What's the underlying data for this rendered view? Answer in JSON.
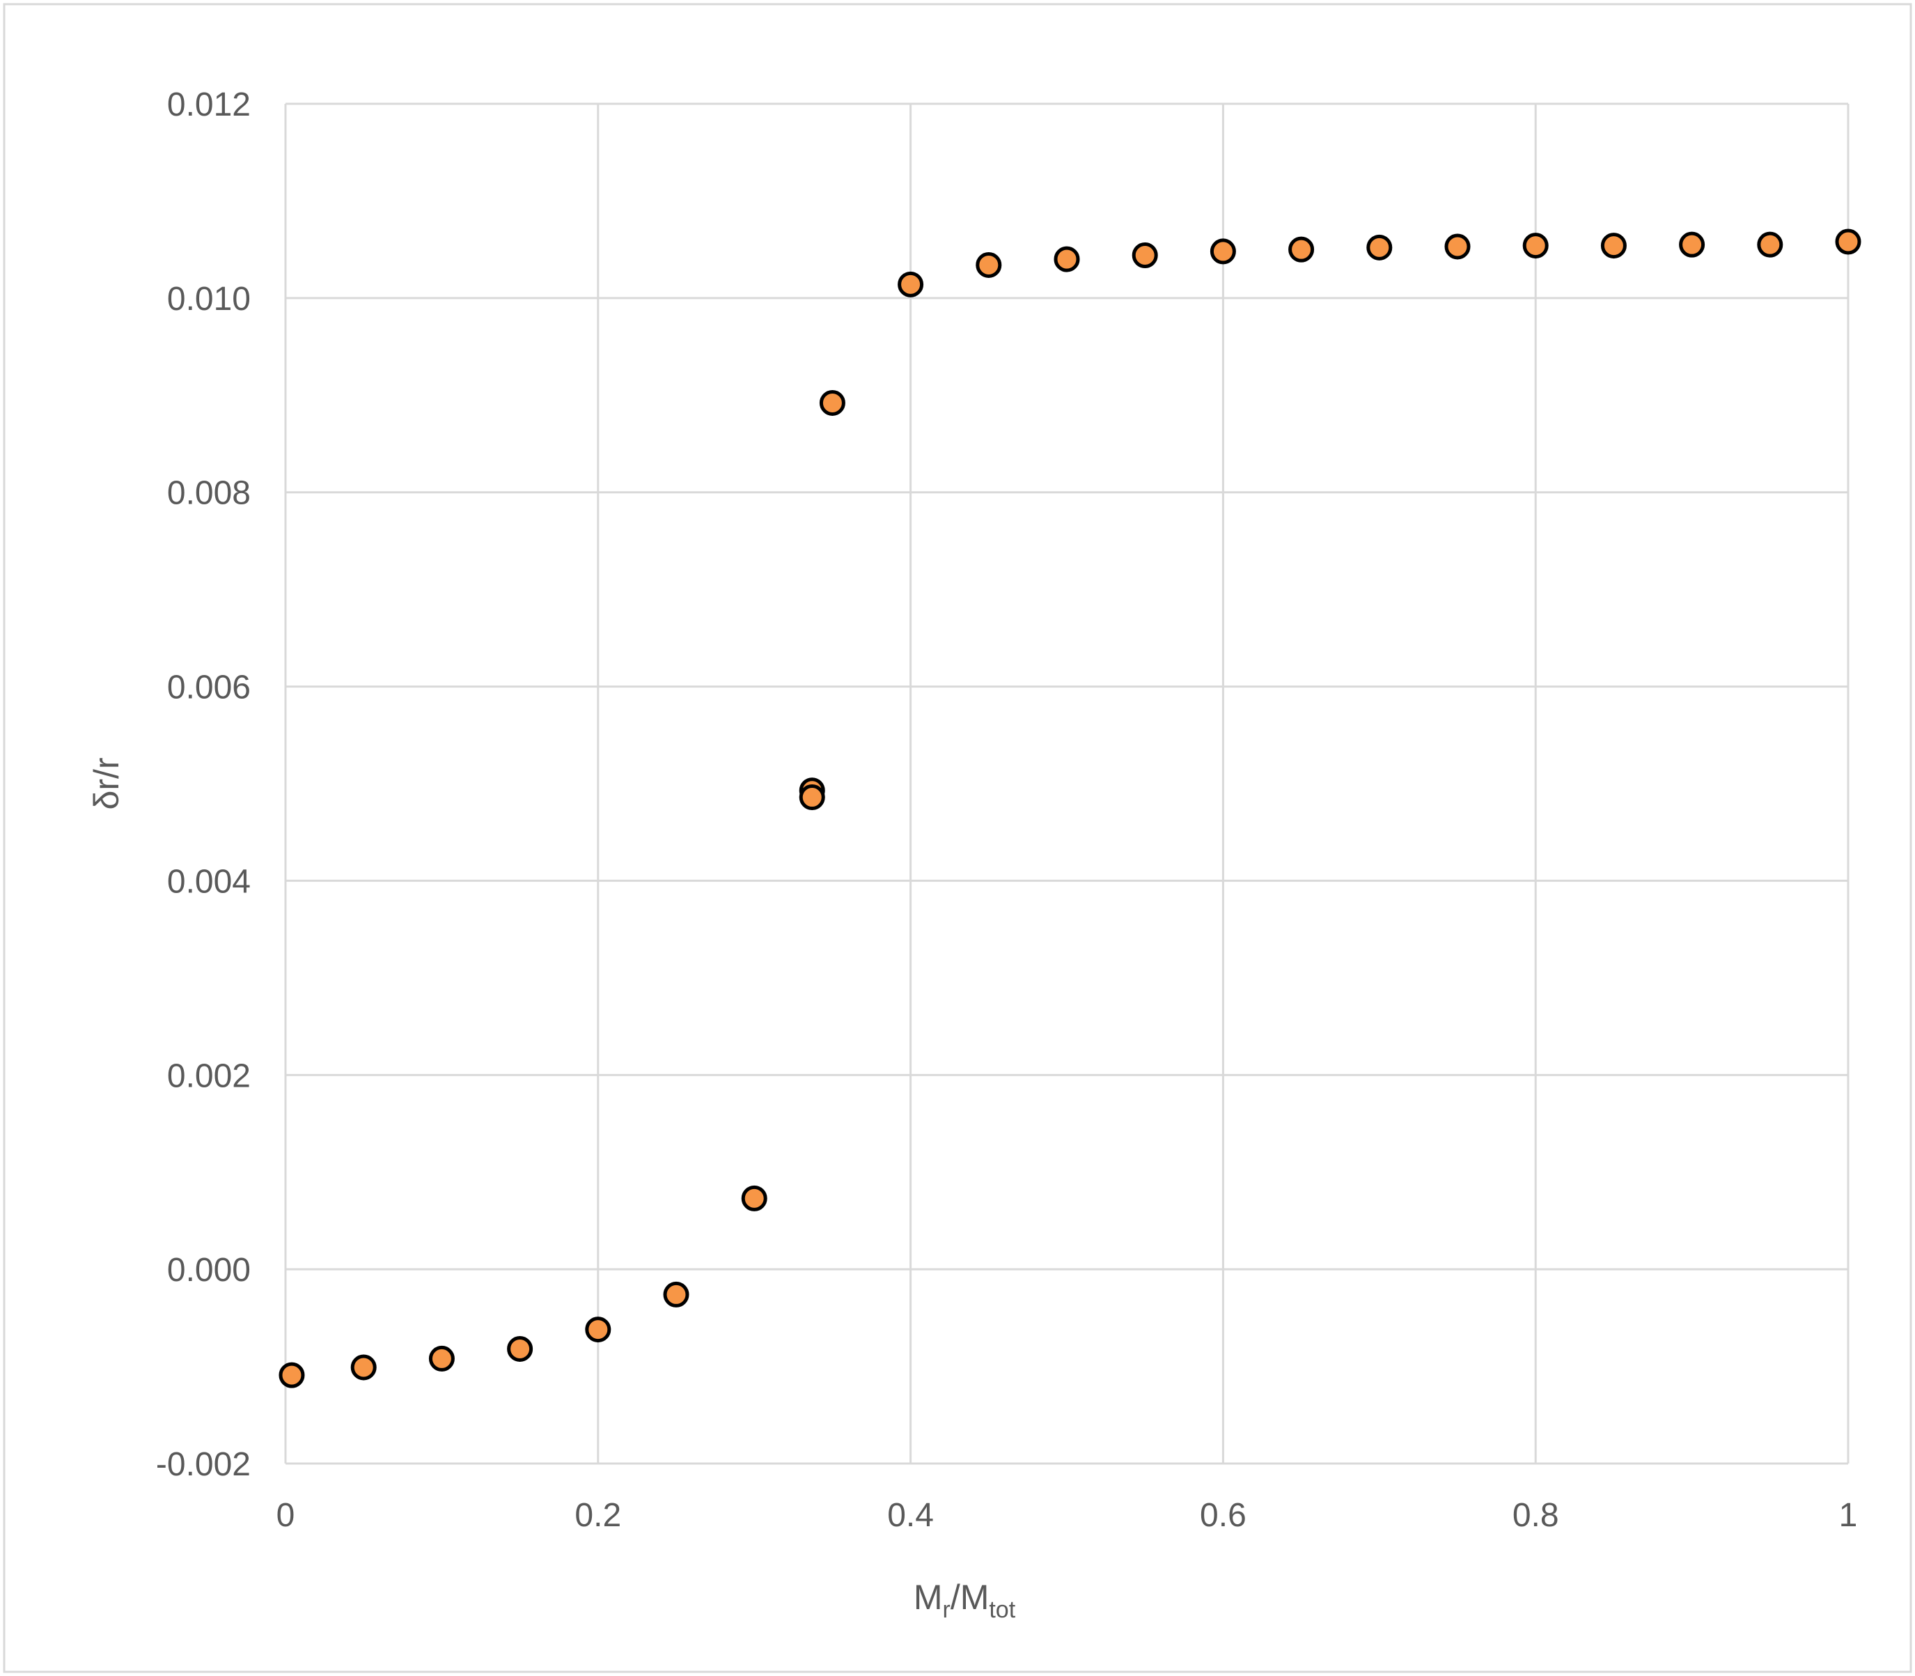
{
  "chart_data": {
    "type": "scatter",
    "title": "",
    "xlabel": {
      "main": "M",
      "sub1": "r",
      "mid": "/M",
      "sub2": "tot"
    },
    "ylabel": "δr/r",
    "xlim": [
      0,
      1
    ],
    "ylim": [
      -0.002,
      0.012
    ],
    "grid": true,
    "xticks": [
      {
        "value": 0,
        "label": "0"
      },
      {
        "value": 0.2,
        "label": "0.2"
      },
      {
        "value": 0.4,
        "label": "0.4"
      },
      {
        "value": 0.6,
        "label": "0.6"
      },
      {
        "value": 0.8,
        "label": "0.8"
      },
      {
        "value": 1,
        "label": "1"
      }
    ],
    "yticks": [
      {
        "value": -0.002,
        "label": "-0.002"
      },
      {
        "value": 0.0,
        "label": "0.000"
      },
      {
        "value": 0.002,
        "label": "0.002"
      },
      {
        "value": 0.004,
        "label": "0.004"
      },
      {
        "value": 0.006,
        "label": "0.006"
      },
      {
        "value": 0.008,
        "label": "0.008"
      },
      {
        "value": 0.01,
        "label": "0.010"
      },
      {
        "value": 0.012,
        "label": "0.012"
      }
    ],
    "series": [
      {
        "name": "δr/r",
        "color": "#F79646",
        "edge": "#000000",
        "x": [
          0.004,
          0.05,
          0.1,
          0.15,
          0.2,
          0.25,
          0.3,
          0.337,
          0.337,
          0.35,
          0.4,
          0.45,
          0.5,
          0.55,
          0.6,
          0.65,
          0.7,
          0.75,
          0.8,
          0.85,
          0.9,
          0.95,
          1.0
        ],
        "y": [
          -0.00109,
          -0.00101,
          -0.00092,
          -0.00082,
          -0.00062,
          -0.00026,
          0.00073,
          0.00493,
          0.00486,
          0.00892,
          0.01014,
          0.01034,
          0.0104,
          0.01044,
          0.01048,
          0.0105,
          0.01052,
          0.01053,
          0.01054,
          0.01054,
          0.01055,
          0.01055,
          0.01058
        ]
      }
    ]
  }
}
